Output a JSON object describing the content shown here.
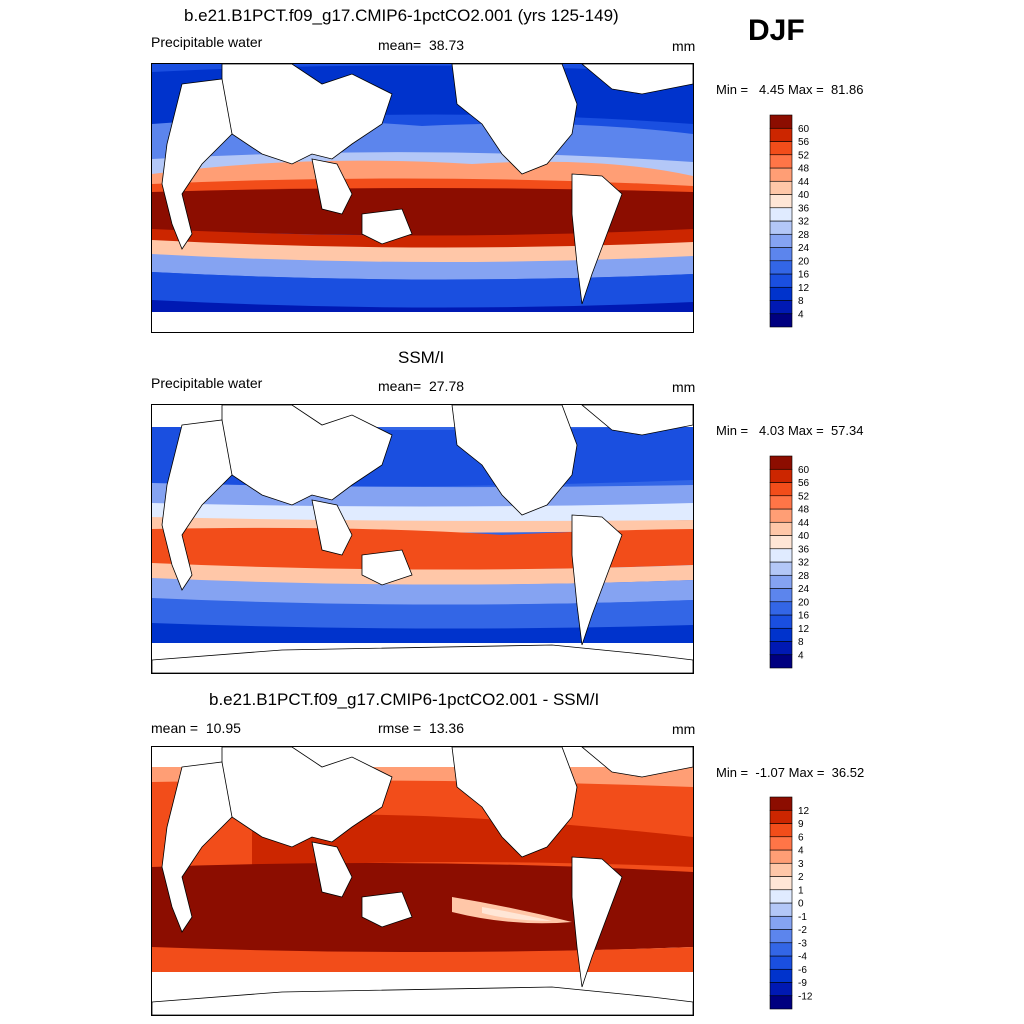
{
  "season": "DJF",
  "chart_data": [
    {
      "type": "heatmap",
      "title": "b.e21.B1PCT.f09_g17.CMIP6-1pctCO2.001 (yrs 125-149)",
      "variable": "Precipitable water",
      "stat_label": "mean=",
      "stat_value": "38.73",
      "units": "mm",
      "min_label": "Min =",
      "min_value": "4.45",
      "max_label": "Max =",
      "max_value": "81.86",
      "colorbar_levels": [
        "4",
        "8",
        "12",
        "16",
        "20",
        "24",
        "28",
        "32",
        "36",
        "40",
        "44",
        "48",
        "52",
        "56",
        "60"
      ],
      "colors": [
        "#000080",
        "#0019b3",
        "#0033cc",
        "#1a4fe0",
        "#3366e6",
        "#5c85ed",
        "#85a3f2",
        "#b3c7f7",
        "#e0ebff",
        "#ffe6d6",
        "#ffc7a8",
        "#ff9e75",
        "#ff7547",
        "#f24d1a",
        "#cc2600",
        "#8c0d00"
      ]
    },
    {
      "type": "heatmap",
      "title": "SSM/I",
      "variable": "Precipitable water",
      "stat_label": "mean=",
      "stat_value": "27.78",
      "units": "mm",
      "min_label": "Min =",
      "min_value": "4.03",
      "max_label": "Max =",
      "max_value": "57.34",
      "colorbar_levels": [
        "4",
        "8",
        "12",
        "16",
        "20",
        "24",
        "28",
        "32",
        "36",
        "40",
        "44",
        "48",
        "52",
        "56",
        "60"
      ],
      "colors": [
        "#000080",
        "#0019b3",
        "#0033cc",
        "#1a4fe0",
        "#3366e6",
        "#5c85ed",
        "#85a3f2",
        "#b3c7f7",
        "#e0ebff",
        "#ffe6d6",
        "#ffc7a8",
        "#ff9e75",
        "#ff7547",
        "#f24d1a",
        "#cc2600",
        "#8c0d00"
      ]
    },
    {
      "type": "heatmap",
      "title": "b.e21.B1PCT.f09_g17.CMIP6-1pctCO2.001 - SSM/I",
      "stat_label": "mean =",
      "stat_value": "10.95",
      "stat2_label": "rmse =",
      "stat2_value": "13.36",
      "units": "mm",
      "min_label": "Min =",
      "min_value": "-1.07",
      "max_label": "Max =",
      "max_value": "36.52",
      "colorbar_levels": [
        "-12",
        "-9",
        "-6",
        "-4",
        "-3",
        "-2",
        "-1",
        "0",
        "1",
        "2",
        "3",
        "4",
        "6",
        "9",
        "12"
      ],
      "colors": [
        "#000080",
        "#0019b3",
        "#0033cc",
        "#1a4fe0",
        "#3366e6",
        "#5c85ed",
        "#85a3f2",
        "#b3c7f7",
        "#e0ebff",
        "#ffe6d6",
        "#ffc7a8",
        "#ff9e75",
        "#ff7547",
        "#f24d1a",
        "#cc2600",
        "#8c0d00"
      ]
    }
  ]
}
